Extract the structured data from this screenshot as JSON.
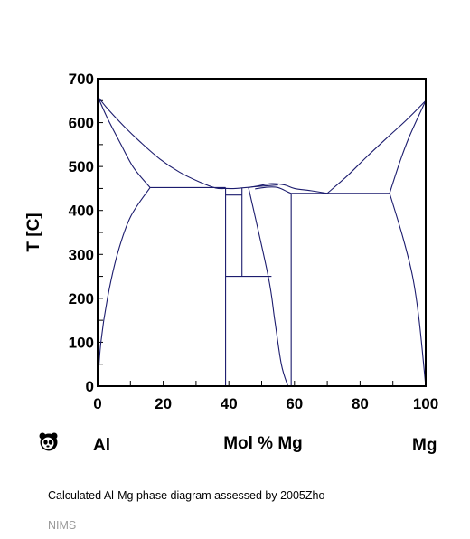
{
  "chart_data": {
    "type": "line",
    "xlabel": "Mol % Mg",
    "ylabel": "T [C]",
    "xlim": [
      0,
      100
    ],
    "ylim": [
      0,
      700
    ],
    "x_ticks": [
      0,
      20,
      40,
      60,
      80,
      100
    ],
    "y_ticks": [
      0,
      100,
      200,
      300,
      400,
      500,
      600,
      700
    ],
    "left_element": "Al",
    "right_element": "Mg",
    "line_color": "#1c1c6e",
    "curves": [
      {
        "points": [
          [
            0,
            660
          ],
          [
            3,
            632
          ],
          [
            8,
            592
          ],
          [
            13,
            556
          ],
          [
            19,
            517
          ],
          [
            25,
            487
          ],
          [
            31,
            465
          ],
          [
            36,
            451
          ],
          [
            39,
            450
          ]
        ]
      },
      {
        "points": [
          [
            0,
            660
          ],
          [
            3,
            610
          ],
          [
            7,
            552
          ],
          [
            11,
            497
          ],
          [
            16,
            452
          ]
        ]
      },
      {
        "points": [
          [
            0,
            0
          ],
          [
            1,
            100
          ],
          [
            3,
            200
          ],
          [
            6,
            300
          ],
          [
            10,
            385
          ],
          [
            16,
            452
          ]
        ]
      },
      {
        "points": [
          [
            16,
            452
          ],
          [
            39,
            452
          ]
        ]
      },
      {
        "points": [
          [
            39,
            450
          ],
          [
            42,
            450
          ],
          [
            48,
            454
          ],
          [
            53,
            457
          ],
          [
            55,
            458
          ]
        ]
      },
      {
        "points": [
          [
            39,
            0
          ],
          [
            39,
            452
          ]
        ]
      },
      {
        "points": [
          [
            39,
            435
          ],
          [
            44,
            435
          ]
        ]
      },
      {
        "points": [
          [
            44,
            250
          ],
          [
            44,
            452
          ]
        ]
      },
      {
        "points": [
          [
            39,
            250
          ],
          [
            53,
            250
          ]
        ]
      },
      {
        "points": [
          [
            46,
            452
          ],
          [
            52,
            250
          ],
          [
            54,
            150
          ],
          [
            56,
            50
          ],
          [
            58,
            0
          ]
        ]
      },
      {
        "points": [
          [
            46,
            452
          ],
          [
            49,
            456
          ],
          [
            53,
            461
          ],
          [
            57,
            458
          ],
          [
            60,
            450
          ],
          [
            65,
            445
          ],
          [
            70,
            439
          ]
        ]
      },
      {
        "points": [
          [
            48,
            449
          ],
          [
            52,
            453
          ],
          [
            55,
            452
          ],
          [
            58,
            442
          ],
          [
            59,
            439
          ]
        ]
      },
      {
        "points": [
          [
            59,
            439
          ],
          [
            59,
            0
          ]
        ]
      },
      {
        "points": [
          [
            59,
            439
          ],
          [
            89,
            439
          ]
        ]
      },
      {
        "points": [
          [
            70,
            439
          ],
          [
            76,
            478
          ],
          [
            82,
            522
          ],
          [
            88,
            564
          ],
          [
            94,
            605
          ],
          [
            100,
            650
          ]
        ]
      },
      {
        "points": [
          [
            89,
            439
          ],
          [
            92,
            508
          ],
          [
            95,
            568
          ],
          [
            100,
            650
          ]
        ]
      },
      {
        "points": [
          [
            89,
            439
          ],
          [
            93,
            340
          ],
          [
            96,
            250
          ],
          [
            98,
            150
          ],
          [
            100,
            0
          ]
        ]
      }
    ]
  },
  "caption": "Calculated Al-Mg phase diagram assessed by 2005Zho",
  "source": "NIMS",
  "logo_icon": "panda-logo-icon"
}
